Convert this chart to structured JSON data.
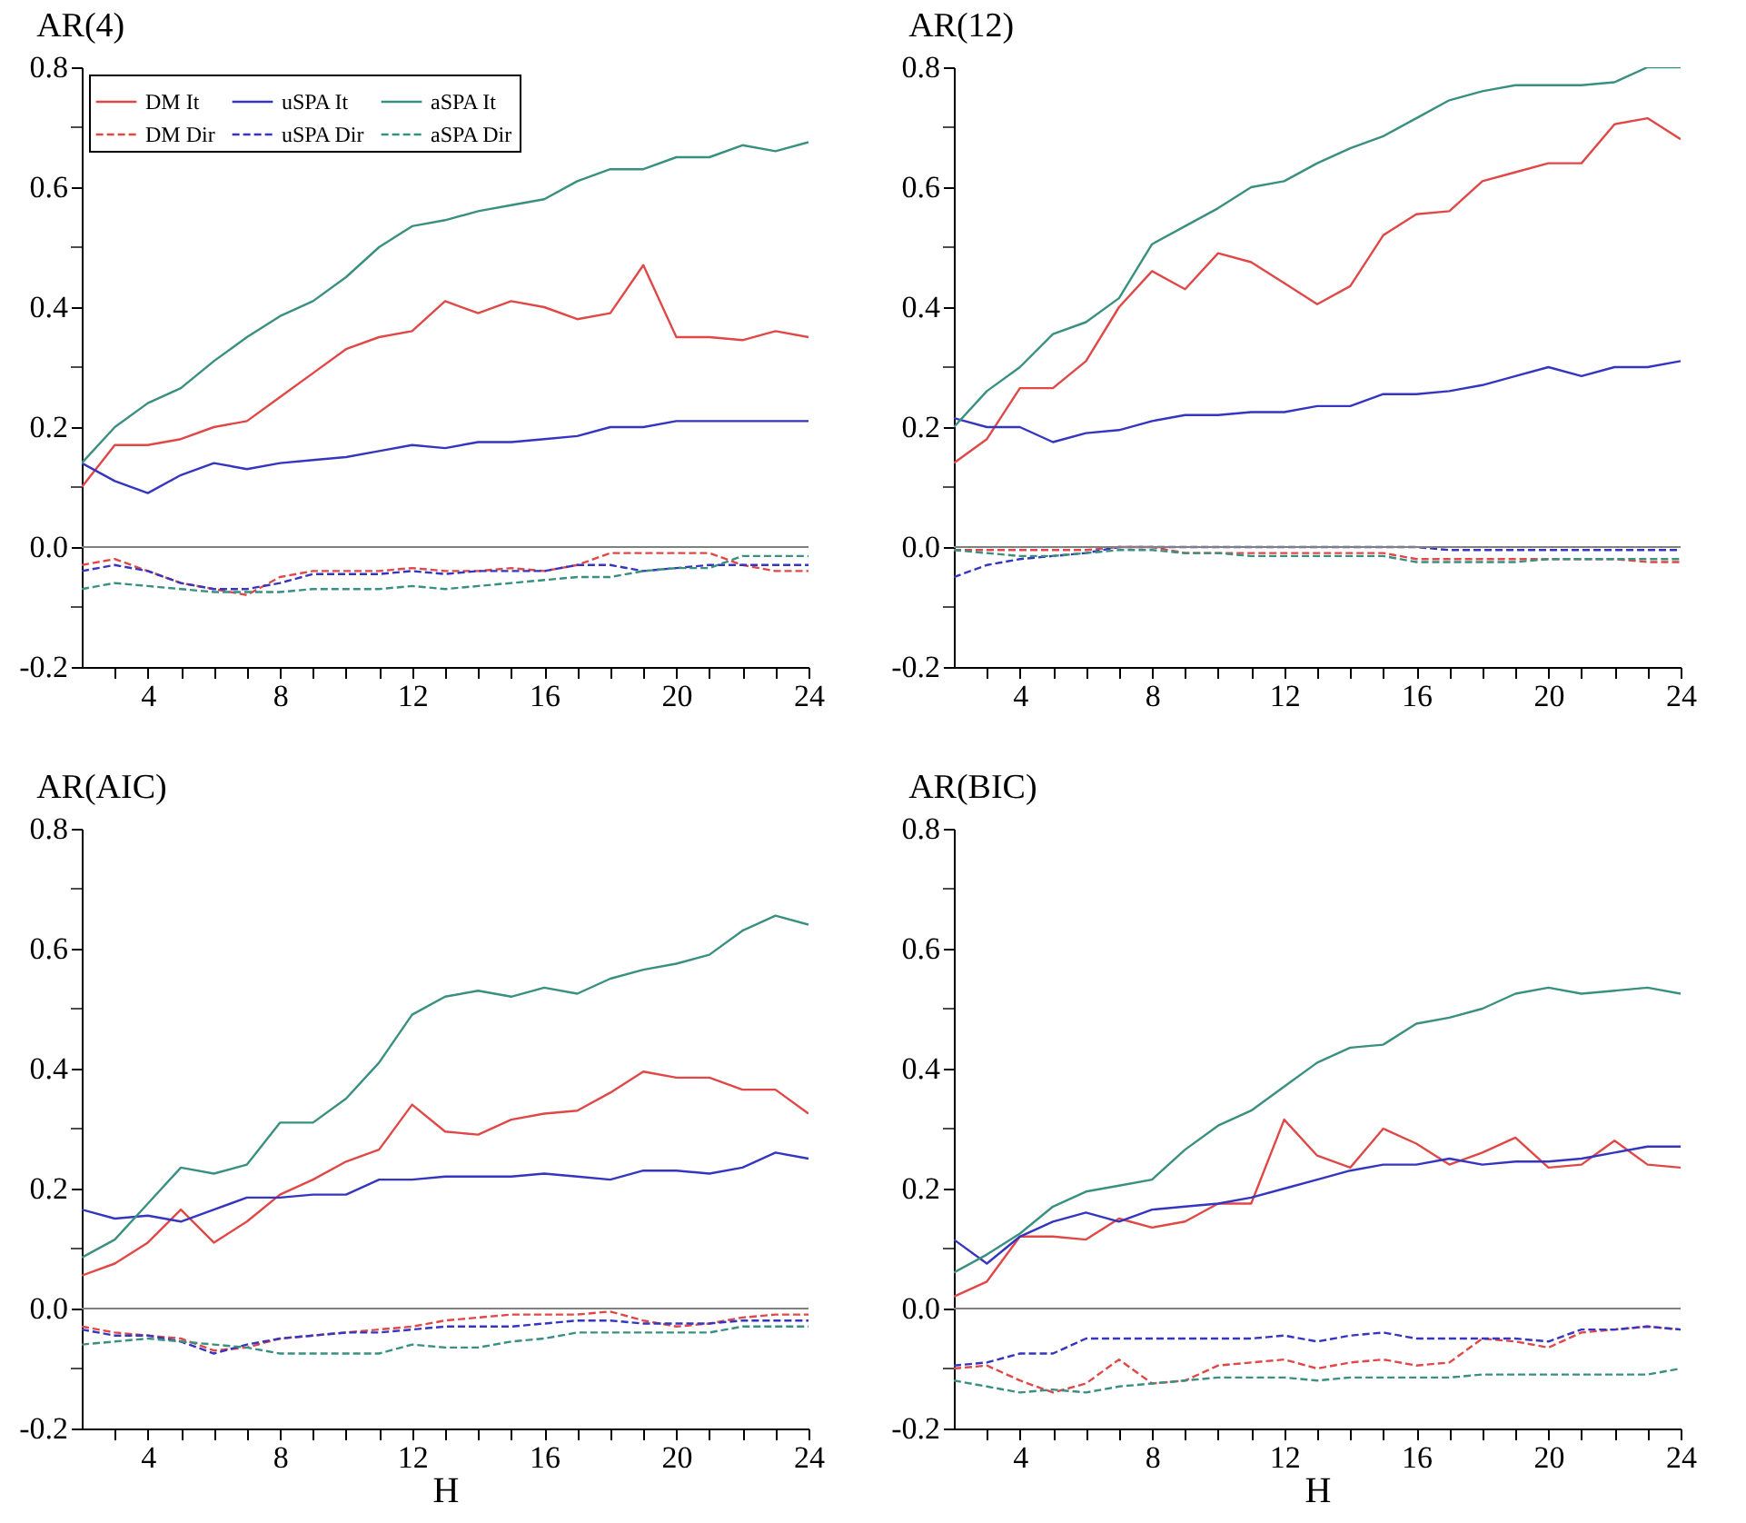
{
  "chart_data": [
    {
      "type": "line",
      "title": "AR(4)",
      "xlim": [
        2,
        24
      ],
      "ylim": [
        -0.2,
        0.8
      ],
      "grid": false,
      "legend": "top left",
      "x": [
        2,
        3,
        4,
        5,
        6,
        7,
        8,
        9,
        10,
        11,
        12,
        13,
        14,
        15,
        16,
        17,
        18,
        19,
        20,
        21,
        22,
        23,
        24
      ],
      "xticks": [
        {
          "value": 3,
          "label": null
        },
        4,
        {
          "value": 5,
          "label": null
        },
        {
          "value": 6,
          "label": null
        },
        {
          "value": 7,
          "label": null
        },
        8,
        {
          "value": 9,
          "label": null
        },
        {
          "value": 10,
          "label": null
        },
        {
          "value": 11,
          "label": null
        },
        12,
        {
          "value": 13,
          "label": null
        },
        {
          "value": 14,
          "label": null
        },
        {
          "value": 15,
          "label": null
        },
        16,
        {
          "value": 17,
          "label": null
        },
        {
          "value": 18,
          "label": null
        },
        {
          "value": 19,
          "label": null
        },
        20,
        {
          "value": 21,
          "label": null
        },
        {
          "value": 22,
          "label": null
        },
        {
          "value": 23,
          "label": null
        },
        24
      ],
      "yticks": [
        -0.2,
        {
          "value": -0.1,
          "label": null
        },
        {
          "value": 0,
          "label": "0.0"
        },
        {
          "value": 0.1,
          "label": null
        },
        0.2,
        {
          "value": 0.3,
          "label": null
        },
        0.4,
        {
          "value": 0.5,
          "label": null
        },
        0.6,
        {
          "value": 0.7,
          "label": null
        },
        0.8
      ],
      "ref_lines": [
        {
          "axis": "y",
          "value": 0,
          "color": "#808080"
        }
      ],
      "series": [
        {
          "name": "DM It",
          "color": "#e04848",
          "line_style": "solid",
          "values": [
            0.1,
            0.17,
            0.17,
            0.18,
            0.2,
            0.21,
            0.25,
            0.29,
            0.33,
            0.35,
            0.36,
            0.41,
            0.39,
            0.41,
            0.4,
            0.38,
            0.39,
            0.47,
            0.35,
            0.35,
            0.345,
            0.36,
            0.35
          ]
        },
        {
          "name": "uSPA It",
          "color": "#3535c0",
          "line_style": "solid",
          "values": [
            0.14,
            0.11,
            0.09,
            0.12,
            0.14,
            0.13,
            0.14,
            0.145,
            0.15,
            0.16,
            0.17,
            0.165,
            0.175,
            0.175,
            0.18,
            0.185,
            0.2,
            0.2,
            0.21,
            0.21,
            0.21,
            0.21,
            0.21
          ]
        },
        {
          "name": "aSPA It",
          "color": "#3a9080",
          "line_style": "solid",
          "values": [
            0.14,
            0.2,
            0.24,
            0.265,
            0.31,
            0.35,
            0.385,
            0.41,
            0.45,
            0.5,
            0.535,
            0.545,
            0.56,
            0.57,
            0.58,
            0.61,
            0.63,
            0.63,
            0.65,
            0.65,
            0.67,
            0.66,
            0.675
          ]
        },
        {
          "name": "DM Dir",
          "color": "#e04848",
          "line_style": "dashed",
          "values": [
            -0.03,
            -0.02,
            -0.04,
            -0.06,
            -0.07,
            -0.08,
            -0.05,
            -0.04,
            -0.04,
            -0.04,
            -0.035,
            -0.04,
            -0.04,
            -0.035,
            -0.04,
            -0.03,
            -0.01,
            -0.01,
            -0.01,
            -0.01,
            -0.03,
            -0.04,
            -0.04
          ]
        },
        {
          "name": "uSPA Dir",
          "color": "#3535c0",
          "line_style": "dashed",
          "values": [
            -0.04,
            -0.03,
            -0.04,
            -0.06,
            -0.07,
            -0.07,
            -0.06,
            -0.045,
            -0.045,
            -0.045,
            -0.04,
            -0.045,
            -0.04,
            -0.04,
            -0.04,
            -0.03,
            -0.03,
            -0.04,
            -0.035,
            -0.03,
            -0.03,
            -0.03,
            -0.03
          ]
        },
        {
          "name": "aSPA Dir",
          "color": "#3a9080",
          "line_style": "dashed",
          "values": [
            -0.07,
            -0.06,
            -0.065,
            -0.07,
            -0.075,
            -0.075,
            -0.075,
            -0.07,
            -0.07,
            -0.07,
            -0.065,
            -0.07,
            -0.065,
            -0.06,
            -0.055,
            -0.05,
            -0.05,
            -0.04,
            -0.035,
            -0.035,
            -0.015,
            -0.015,
            -0.015
          ]
        }
      ]
    },
    {
      "type": "line",
      "title": "AR(12)",
      "xlim": [
        2,
        24
      ],
      "ylim": [
        -0.2,
        0.8
      ],
      "grid": false,
      "x": [
        2,
        3,
        4,
        5,
        6,
        7,
        8,
        9,
        10,
        11,
        12,
        13,
        14,
        15,
        16,
        17,
        18,
        19,
        20,
        21,
        22,
        23,
        24
      ],
      "xticks": [
        {
          "value": 3,
          "label": null
        },
        4,
        {
          "value": 5,
          "label": null
        },
        {
          "value": 6,
          "label": null
        },
        {
          "value": 7,
          "label": null
        },
        8,
        {
          "value": 9,
          "label": null
        },
        {
          "value": 10,
          "label": null
        },
        {
          "value": 11,
          "label": null
        },
        12,
        {
          "value": 13,
          "label": null
        },
        {
          "value": 14,
          "label": null
        },
        {
          "value": 15,
          "label": null
        },
        16,
        {
          "value": 17,
          "label": null
        },
        {
          "value": 18,
          "label": null
        },
        {
          "value": 19,
          "label": null
        },
        20,
        {
          "value": 21,
          "label": null
        },
        {
          "value": 22,
          "label": null
        },
        {
          "value": 23,
          "label": null
        },
        24
      ],
      "yticks": [
        -0.2,
        {
          "value": -0.1,
          "label": null
        },
        {
          "value": 0,
          "label": "0.0"
        },
        {
          "value": 0.1,
          "label": null
        },
        0.2,
        {
          "value": 0.3,
          "label": null
        },
        0.4,
        {
          "value": 0.5,
          "label": null
        },
        0.6,
        {
          "value": 0.7,
          "label": null
        },
        0.8
      ],
      "ref_lines": [
        {
          "axis": "y",
          "value": 0,
          "color": "#808080"
        }
      ],
      "series": [
        {
          "color": "#e04848",
          "line_style": "solid",
          "values": [
            0.14,
            0.18,
            0.265,
            0.265,
            0.31,
            0.4,
            0.46,
            0.43,
            0.49,
            0.475,
            0.44,
            0.405,
            0.435,
            0.52,
            0.555,
            0.56,
            0.61,
            0.625,
            0.64,
            0.64,
            0.705,
            0.715,
            0.68
          ]
        },
        {
          "color": "#3535c0",
          "line_style": "solid",
          "values": [
            0.215,
            0.2,
            0.2,
            0.175,
            0.19,
            0.195,
            0.21,
            0.22,
            0.22,
            0.225,
            0.225,
            0.235,
            0.235,
            0.255,
            0.255,
            0.26,
            0.27,
            0.285,
            0.3,
            0.285,
            0.3,
            0.3,
            0.31
          ]
        },
        {
          "color": "#3a9080",
          "line_style": "solid",
          "values": [
            0.2,
            0.26,
            0.3,
            0.355,
            0.375,
            0.415,
            0.505,
            0.535,
            0.565,
            0.6,
            0.61,
            0.64,
            0.665,
            0.685,
            0.715,
            0.745,
            0.76,
            0.77,
            0.77,
            0.77,
            0.775,
            0.8,
            0.8
          ]
        },
        {
          "color": "#e04848",
          "line_style": "dashed",
          "values": [
            -0.005,
            -0.005,
            -0.005,
            -0.005,
            -0.005,
            0,
            0,
            -0.01,
            -0.01,
            -0.01,
            -0.01,
            -0.01,
            -0.01,
            -0.01,
            -0.02,
            -0.02,
            -0.02,
            -0.02,
            -0.02,
            -0.02,
            -0.02,
            -0.025,
            -0.025
          ]
        },
        {
          "color": "#3535c0",
          "line_style": "dashed",
          "values": [
            -0.05,
            -0.03,
            -0.02,
            -0.015,
            -0.01,
            0,
            0,
            0,
            0,
            0,
            0,
            0,
            0,
            0,
            0,
            -0.005,
            -0.005,
            -0.005,
            -0.005,
            -0.005,
            -0.005,
            -0.005,
            -0.005
          ]
        },
        {
          "color": "#3a9080",
          "line_style": "dashed",
          "values": [
            -0.005,
            -0.01,
            -0.015,
            -0.015,
            -0.01,
            -0.005,
            -0.005,
            -0.01,
            -0.01,
            -0.015,
            -0.015,
            -0.015,
            -0.015,
            -0.015,
            -0.025,
            -0.025,
            -0.025,
            -0.025,
            -0.02,
            -0.02,
            -0.02,
            -0.02,
            -0.02
          ]
        }
      ]
    },
    {
      "type": "line",
      "title": "AR(AIC)",
      "xlabel": "H",
      "xlim": [
        2,
        24
      ],
      "ylim": [
        -0.2,
        0.8
      ],
      "grid": false,
      "x": [
        2,
        3,
        4,
        5,
        6,
        7,
        8,
        9,
        10,
        11,
        12,
        13,
        14,
        15,
        16,
        17,
        18,
        19,
        20,
        21,
        22,
        23,
        24
      ],
      "xticks": [
        {
          "value": 3,
          "label": null
        },
        4,
        {
          "value": 5,
          "label": null
        },
        {
          "value": 6,
          "label": null
        },
        {
          "value": 7,
          "label": null
        },
        8,
        {
          "value": 9,
          "label": null
        },
        {
          "value": 10,
          "label": null
        },
        {
          "value": 11,
          "label": null
        },
        12,
        {
          "value": 13,
          "label": null
        },
        {
          "value": 14,
          "label": null
        },
        {
          "value": 15,
          "label": null
        },
        16,
        {
          "value": 17,
          "label": null
        },
        {
          "value": 18,
          "label": null
        },
        {
          "value": 19,
          "label": null
        },
        20,
        {
          "value": 21,
          "label": null
        },
        {
          "value": 22,
          "label": null
        },
        {
          "value": 23,
          "label": null
        },
        24
      ],
      "yticks": [
        -0.2,
        {
          "value": -0.1,
          "label": null
        },
        {
          "value": 0,
          "label": "0.0"
        },
        {
          "value": 0.1,
          "label": null
        },
        0.2,
        {
          "value": 0.3,
          "label": null
        },
        0.4,
        {
          "value": 0.5,
          "label": null
        },
        0.6,
        {
          "value": 0.7,
          "label": null
        },
        0.8
      ],
      "ref_lines": [
        {
          "axis": "y",
          "value": 0,
          "color": "#808080"
        }
      ],
      "series": [
        {
          "color": "#e04848",
          "line_style": "solid",
          "values": [
            0.055,
            0.075,
            0.11,
            0.165,
            0.11,
            0.145,
            0.19,
            0.215,
            0.245,
            0.265,
            0.34,
            0.295,
            0.29,
            0.315,
            0.325,
            0.33,
            0.36,
            0.395,
            0.385,
            0.385,
            0.365,
            0.365,
            0.325
          ]
        },
        {
          "color": "#3535c0",
          "line_style": "solid",
          "values": [
            0.165,
            0.15,
            0.155,
            0.145,
            0.165,
            0.185,
            0.185,
            0.19,
            0.19,
            0.215,
            0.215,
            0.22,
            0.22,
            0.22,
            0.225,
            0.22,
            0.215,
            0.23,
            0.23,
            0.225,
            0.235,
            0.26,
            0.25
          ]
        },
        {
          "color": "#3a9080",
          "line_style": "solid",
          "values": [
            0.085,
            0.115,
            0.175,
            0.235,
            0.225,
            0.24,
            0.31,
            0.31,
            0.35,
            0.41,
            0.49,
            0.52,
            0.53,
            0.52,
            0.535,
            0.525,
            0.55,
            0.565,
            0.575,
            0.59,
            0.63,
            0.655,
            0.64
          ]
        },
        {
          "color": "#e04848",
          "line_style": "dashed",
          "values": [
            -0.03,
            -0.04,
            -0.045,
            -0.05,
            -0.07,
            -0.065,
            -0.05,
            -0.045,
            -0.04,
            -0.035,
            -0.03,
            -0.02,
            -0.015,
            -0.01,
            -0.01,
            -0.01,
            -0.005,
            -0.02,
            -0.03,
            -0.025,
            -0.015,
            -0.01,
            -0.01
          ]
        },
        {
          "color": "#3535c0",
          "line_style": "dashed",
          "values": [
            -0.035,
            -0.045,
            -0.045,
            -0.055,
            -0.075,
            -0.06,
            -0.05,
            -0.045,
            -0.04,
            -0.04,
            -0.035,
            -0.03,
            -0.03,
            -0.03,
            -0.025,
            -0.02,
            -0.02,
            -0.025,
            -0.025,
            -0.025,
            -0.02,
            -0.02,
            -0.02
          ]
        },
        {
          "color": "#3a9080",
          "line_style": "dashed",
          "values": [
            -0.06,
            -0.055,
            -0.05,
            -0.055,
            -0.06,
            -0.065,
            -0.075,
            -0.075,
            -0.075,
            -0.075,
            -0.06,
            -0.065,
            -0.065,
            -0.055,
            -0.05,
            -0.04,
            -0.04,
            -0.04,
            -0.04,
            -0.04,
            -0.03,
            -0.03,
            -0.03
          ]
        }
      ]
    },
    {
      "type": "line",
      "title": "AR(BIC)",
      "xlabel": "H",
      "xlim": [
        2,
        24
      ],
      "ylim": [
        -0.2,
        0.8
      ],
      "grid": false,
      "x": [
        2,
        3,
        4,
        5,
        6,
        7,
        8,
        9,
        10,
        11,
        12,
        13,
        14,
        15,
        16,
        17,
        18,
        19,
        20,
        21,
        22,
        23,
        24
      ],
      "xticks": [
        {
          "value": 3,
          "label": null
        },
        4,
        {
          "value": 5,
          "label": null
        },
        {
          "value": 6,
          "label": null
        },
        {
          "value": 7,
          "label": null
        },
        8,
        {
          "value": 9,
          "label": null
        },
        {
          "value": 10,
          "label": null
        },
        {
          "value": 11,
          "label": null
        },
        12,
        {
          "value": 13,
          "label": null
        },
        {
          "value": 14,
          "label": null
        },
        {
          "value": 15,
          "label": null
        },
        16,
        {
          "value": 17,
          "label": null
        },
        {
          "value": 18,
          "label": null
        },
        {
          "value": 19,
          "label": null
        },
        20,
        {
          "value": 21,
          "label": null
        },
        {
          "value": 22,
          "label": null
        },
        {
          "value": 23,
          "label": null
        },
        24
      ],
      "yticks": [
        -0.2,
        {
          "value": -0.1,
          "label": null
        },
        {
          "value": 0,
          "label": "0.0"
        },
        {
          "value": 0.1,
          "label": null
        },
        0.2,
        {
          "value": 0.3,
          "label": null
        },
        0.4,
        {
          "value": 0.5,
          "label": null
        },
        0.6,
        {
          "value": 0.7,
          "label": null
        },
        0.8
      ],
      "ref_lines": [
        {
          "axis": "y",
          "value": 0,
          "color": "#808080"
        }
      ],
      "series": [
        {
          "color": "#e04848",
          "line_style": "solid",
          "values": [
            0.02,
            0.045,
            0.12,
            0.12,
            0.115,
            0.15,
            0.135,
            0.145,
            0.175,
            0.175,
            0.315,
            0.255,
            0.235,
            0.3,
            0.275,
            0.24,
            0.26,
            0.285,
            0.235,
            0.24,
            0.28,
            0.24,
            0.235
          ]
        },
        {
          "color": "#3535c0",
          "line_style": "solid",
          "values": [
            0.115,
            0.075,
            0.12,
            0.145,
            0.16,
            0.145,
            0.165,
            0.17,
            0.175,
            0.185,
            0.2,
            0.215,
            0.23,
            0.24,
            0.24,
            0.25,
            0.24,
            0.245,
            0.245,
            0.25,
            0.26,
            0.27,
            0.27
          ]
        },
        {
          "color": "#3a9080",
          "line_style": "solid",
          "values": [
            0.06,
            0.09,
            0.125,
            0.17,
            0.195,
            0.205,
            0.215,
            0.265,
            0.305,
            0.33,
            0.37,
            0.41,
            0.435,
            0.44,
            0.475,
            0.485,
            0.5,
            0.525,
            0.535,
            0.525,
            0.53,
            0.535,
            0.525
          ]
        },
        {
          "color": "#e04848",
          "line_style": "dashed",
          "values": [
            -0.1,
            -0.095,
            -0.12,
            -0.14,
            -0.125,
            -0.085,
            -0.125,
            -0.12,
            -0.095,
            -0.09,
            -0.085,
            -0.1,
            -0.09,
            -0.085,
            -0.095,
            -0.09,
            -0.05,
            -0.055,
            -0.065,
            -0.04,
            -0.035,
            -0.03,
            -0.035
          ]
        },
        {
          "color": "#3535c0",
          "line_style": "dashed",
          "values": [
            -0.095,
            -0.09,
            -0.075,
            -0.075,
            -0.05,
            -0.05,
            -0.05,
            -0.05,
            -0.05,
            -0.05,
            -0.045,
            -0.055,
            -0.045,
            -0.04,
            -0.05,
            -0.05,
            -0.05,
            -0.05,
            -0.055,
            -0.035,
            -0.035,
            -0.03,
            -0.035
          ]
        },
        {
          "color": "#3a9080",
          "line_style": "dashed",
          "values": [
            -0.12,
            -0.13,
            -0.14,
            -0.135,
            -0.14,
            -0.13,
            -0.125,
            -0.12,
            -0.115,
            -0.115,
            -0.115,
            -0.12,
            -0.115,
            -0.115,
            -0.115,
            -0.115,
            -0.11,
            -0.11,
            -0.11,
            -0.11,
            -0.11,
            -0.11,
            -0.1
          ]
        }
      ]
    }
  ]
}
